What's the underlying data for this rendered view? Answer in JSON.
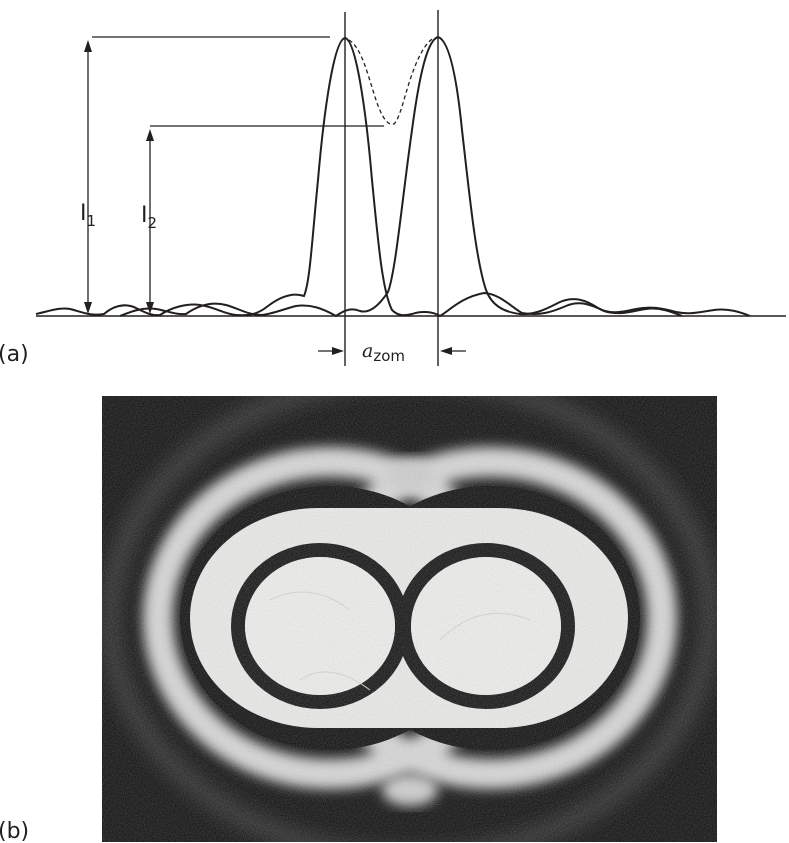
{
  "panel_a": {
    "label": "(a)",
    "i1_label": "I",
    "i1_sub": "1",
    "i2_label": "I",
    "i2_sub": "2",
    "separation_symbol": "a",
    "separation_sub": "zom"
  },
  "panel_b": {
    "label": "(b)"
  },
  "colors": {
    "ink": "#231f20",
    "photo_dark": "#0b0b0b",
    "photo_light": "#f0f0ee"
  }
}
